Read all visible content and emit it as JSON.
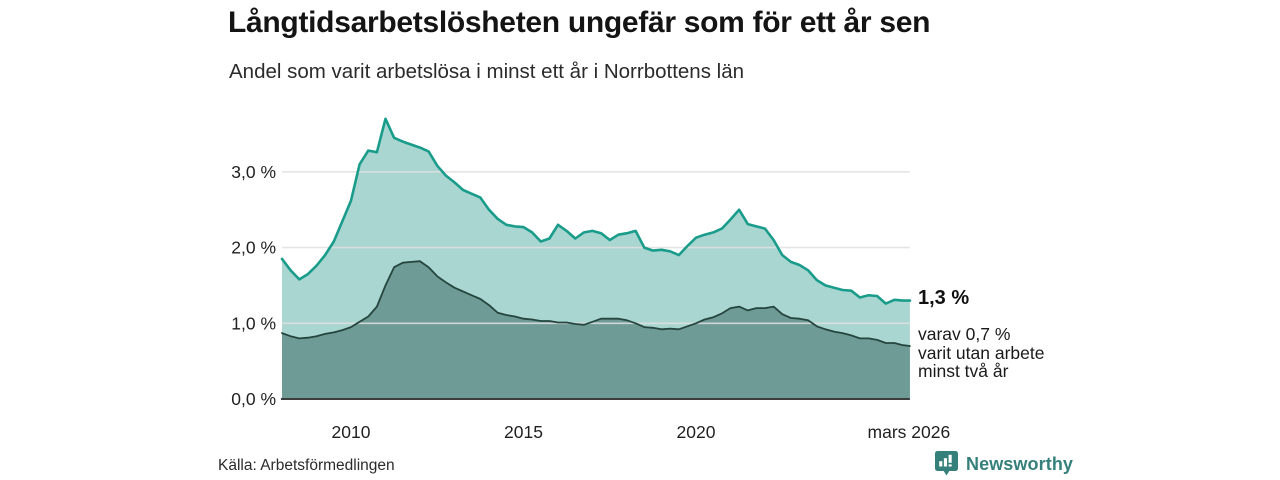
{
  "header": {
    "title": "Långtidsarbetslösheten ungefär som för ett år sen",
    "subtitle": "Andel som varit arbetslösa i minst ett år i Norrbottens län"
  },
  "chart_data": {
    "type": "area",
    "title": "Långtidsarbetslösheten ungefär som för ett år sen",
    "subtitle": "Andel som varit arbetslösa i minst ett år i Norrbottens län",
    "x_unit": "year (decimal, monthly series shown quarterly)",
    "x_range": [
      2008.0,
      2026.2
    ],
    "ylim": [
      0,
      3.9
    ],
    "grid": true,
    "legend_position": "none",
    "x": [
      2008,
      2008.25,
      2008.5,
      2008.75,
      2009,
      2009.25,
      2009.5,
      2009.75,
      2010,
      2010.25,
      2010.5,
      2010.75,
      2011,
      2011.25,
      2011.5,
      2011.75,
      2012,
      2012.25,
      2012.5,
      2012.75,
      2013,
      2013.25,
      2013.5,
      2013.75,
      2014,
      2014.25,
      2014.5,
      2014.75,
      2015,
      2015.25,
      2015.5,
      2015.75,
      2016,
      2016.25,
      2016.5,
      2016.75,
      2017,
      2017.25,
      2017.5,
      2017.75,
      2018,
      2018.25,
      2018.5,
      2018.75,
      2019,
      2019.25,
      2019.5,
      2019.75,
      2020,
      2020.25,
      2020.5,
      2020.75,
      2021,
      2021.25,
      2021.5,
      2021.75,
      2022,
      2022.25,
      2022.5,
      2022.75,
      2023,
      2023.25,
      2023.5,
      2023.75,
      2024,
      2024.25,
      2024.5,
      2024.75,
      2025,
      2025.25,
      2025.5,
      2025.75,
      2026,
      2026.2
    ],
    "series": [
      {
        "name": "Andel arbetslösa minst ett år",
        "line_color": "#1a9c8b",
        "fill_color": "#a9d6d0",
        "end_value_pct": 1.3,
        "values": [
          1.85,
          1.7,
          1.58,
          1.65,
          1.76,
          1.9,
          2.08,
          2.35,
          2.62,
          3.1,
          3.28,
          3.26,
          3.7,
          3.45,
          3.4,
          3.36,
          3.32,
          3.27,
          3.08,
          2.95,
          2.86,
          2.76,
          2.71,
          2.66,
          2.5,
          2.38,
          2.3,
          2.28,
          2.27,
          2.2,
          2.08,
          2.12,
          2.3,
          2.22,
          2.12,
          2.2,
          2.22,
          2.19,
          2.1,
          2.17,
          2.19,
          2.22,
          2.0,
          1.96,
          1.97,
          1.95,
          1.9,
          2.02,
          2.13,
          2.17,
          2.2,
          2.25,
          2.37,
          2.5,
          2.31,
          2.28,
          2.25,
          2.1,
          1.9,
          1.81,
          1.77,
          1.7,
          1.57,
          1.5,
          1.47,
          1.44,
          1.43,
          1.34,
          1.37,
          1.36,
          1.26,
          1.31,
          1.3,
          1.3
        ]
      },
      {
        "name": "varav utan arbete minst två år",
        "line_color": "#25463f",
        "fill_color": "#6f9b97",
        "end_value_pct": 0.7,
        "values": [
          0.87,
          0.83,
          0.8,
          0.81,
          0.83,
          0.86,
          0.88,
          0.91,
          0.95,
          1.02,
          1.09,
          1.22,
          1.5,
          1.74,
          1.8,
          1.81,
          1.82,
          1.74,
          1.62,
          1.54,
          1.47,
          1.42,
          1.37,
          1.32,
          1.24,
          1.14,
          1.11,
          1.09,
          1.06,
          1.05,
          1.03,
          1.03,
          1.01,
          1.01,
          0.99,
          0.98,
          1.02,
          1.06,
          1.06,
          1.06,
          1.04,
          1.0,
          0.95,
          0.94,
          0.92,
          0.93,
          0.92,
          0.96,
          1.0,
          1.05,
          1.08,
          1.13,
          1.2,
          1.22,
          1.17,
          1.2,
          1.2,
          1.22,
          1.12,
          1.07,
          1.06,
          1.04,
          0.96,
          0.92,
          0.89,
          0.87,
          0.84,
          0.8,
          0.8,
          0.78,
          0.74,
          0.74,
          0.71,
          0.7
        ]
      }
    ],
    "yticks": [
      {
        "value": 3.0,
        "label": "3,0 %"
      },
      {
        "value": 2.0,
        "label": "2,0 %"
      },
      {
        "value": 1.0,
        "label": "1,0 %"
      },
      {
        "value": 0.0,
        "label": "0,0 %"
      }
    ],
    "xticks": [
      {
        "value": 2010,
        "label": "2010"
      },
      {
        "value": 2015,
        "label": "2015"
      },
      {
        "value": 2020,
        "label": "2020"
      },
      {
        "value": 2026.17,
        "label": "mars 2026"
      }
    ]
  },
  "annotations": {
    "end_value": "1,3 %",
    "sub_lines": [
      "varav 0,7 %",
      "varit utan arbete",
      "minst två år"
    ]
  },
  "footer": {
    "source": "Källa: Arbetsförmedlingen",
    "brand": "Newsworthy"
  },
  "colors": {
    "accent_line": "#1a9c8b",
    "light_fill": "#a9d6d0",
    "dark_fill": "#6f9b97",
    "dark_line": "#25463f",
    "gridline": "#dedede",
    "axis_line": "#3d3d3d",
    "text": "#1f1f1f",
    "brand_teal": "#35807b"
  }
}
